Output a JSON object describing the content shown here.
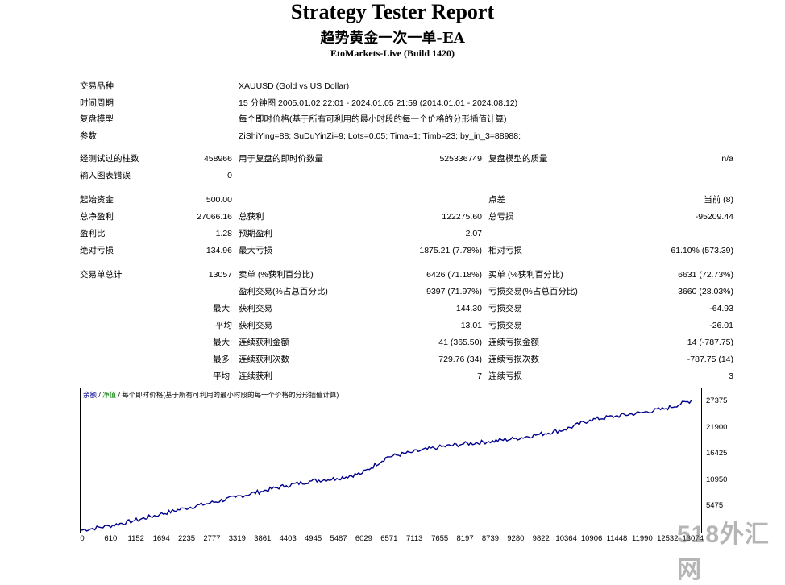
{
  "report": {
    "title": "Strategy Tester Report",
    "ea_name": "趋势黄金一次一单-EA",
    "server": "EtoMarkets-Live (Build 1420)"
  },
  "settings": {
    "symbol_label": "交易品种",
    "symbol_value": "XAUUSD (Gold vs US Dollar)",
    "period_label": "时间周期",
    "period_value": "15 分钟图 2005.01.02 22:01 - 2024.01.05 21:59 (2014.01.01 - 2024.08.12)",
    "model_label": "复盘模型",
    "model_value": "每个即时价格(基于所有可利用的最小时段的每一个价格的分形插值计算)",
    "params_label": "参数",
    "params_value": "ZiShiYing=88; SuDuYinZi=9; Lots=0.05; Tima=1; Timb=23; by_in_3=88988;"
  },
  "stats": {
    "bars_label": "经测试过的柱数",
    "bars_value": "458966",
    "ticks_label": "用于复盘的即时价数量",
    "ticks_value": "525336749",
    "quality_label": "复盘模型的质量",
    "quality_value": "n/a",
    "errors_label": "输入图表错误",
    "errors_value": "0",
    "deposit_label": "起始资金",
    "deposit_value": "500.00",
    "spread_label": "点差",
    "spread_value": "当前 (8)",
    "net_label": "总净盈利",
    "net_value": "27066.16",
    "gross_profit_label": "总获利",
    "gross_profit_value": "122275.60",
    "gross_loss_label": "总亏损",
    "gross_loss_value": "-95209.44",
    "pf_label": "盈利比",
    "pf_value": "1.28",
    "payoff_label": "预期盈利",
    "payoff_value": "2.07",
    "abs_dd_label": "绝对亏损",
    "abs_dd_value": "134.96",
    "max_dd_label": "最大亏损",
    "max_dd_value": "1875.21 (7.78%)",
    "rel_dd_label": "相对亏损",
    "rel_dd_value": "61.10% (573.39)",
    "trades_label": "交易单总计",
    "trades_value": "13057",
    "short_label": "卖单 (%获利百分比)",
    "short_value": "6426 (71.18%)",
    "long_label": "买单 (%获利百分比)",
    "long_value": "6631 (72.73%)",
    "win_trades_label": "盈利交易(%占总百分比)",
    "win_trades_value": "9397 (71.97%)",
    "loss_trades_label": "亏损交易(%占总百分比)",
    "loss_trades_value": "3660 (28.03%)",
    "max_prefix": "最大:",
    "avg_prefix": "平均",
    "max2_prefix": "最大:",
    "most_prefix": "最多:",
    "avg2_prefix": "平均:",
    "largest_win_label": "获利交易",
    "largest_win_value": "144.30",
    "largest_loss_label": "亏损交易",
    "largest_loss_value": "-64.93",
    "avg_win_label": "获利交易",
    "avg_win_value": "13.01",
    "avg_loss_label": "亏损交易",
    "avg_loss_value": "-26.01",
    "max_consec_win_label": "连续获利金额",
    "max_consec_win_value": "41 (365.50)",
    "max_consec_loss_label": "连续亏损金额",
    "max_consec_loss_value": "14 (-787.75)",
    "max_consec_profit_label": "连续获利次数",
    "max_consec_profit_value": "729.76 (34)",
    "max_consec_lossamt_label": "连续亏损次数",
    "max_consec_lossamt_value": "-787.75 (14)",
    "avg_consec_win_label": "连续获利",
    "avg_consec_win_value": "7",
    "avg_consec_loss_label": "连续亏损",
    "avg_consec_loss_value": "3"
  },
  "chart_legend": {
    "balance": "余额",
    "sep1": " / ",
    "equity": "净值",
    "sep2": " / ",
    "model": "每个即时价格(基于所有可利用的最小时段的每一个价格的分形插值计算)"
  },
  "watermark": "518外汇网",
  "chart_data": {
    "type": "line",
    "series": [
      {
        "name": "余额",
        "color": "#00008b"
      }
    ],
    "x": [
      0,
      610,
      1152,
      1694,
      2235,
      2777,
      3319,
      3861,
      4403,
      4945,
      5487,
      6029,
      6571,
      7113,
      7655,
      8197,
      8739,
      9280,
      9822,
      10364,
      10906,
      11448,
      11990,
      12532,
      13074
    ],
    "y": [
      500,
      1400,
      2500,
      3800,
      5100,
      6200,
      7400,
      8600,
      9800,
      10800,
      11300,
      12400,
      15800,
      16800,
      17800,
      18500,
      19000,
      19600,
      20500,
      21500,
      23500,
      24300,
      25000,
      25900,
      27566
    ],
    "xlim": [
      0,
      13286
    ],
    "ylim": [
      0,
      30100
    ],
    "yticks": [
      "27375",
      "21900",
      "16425",
      "10950",
      "5475"
    ],
    "xticks": [
      "0",
      "610",
      "1152",
      "1694",
      "2235",
      "2777",
      "3319",
      "3861",
      "4403",
      "4945",
      "5487",
      "6029",
      "6571",
      "7113",
      "7655",
      "8197",
      "8739",
      "9280",
      "9822",
      "10364",
      "10906",
      "11448",
      "11990",
      "12532",
      "13074"
    ]
  }
}
